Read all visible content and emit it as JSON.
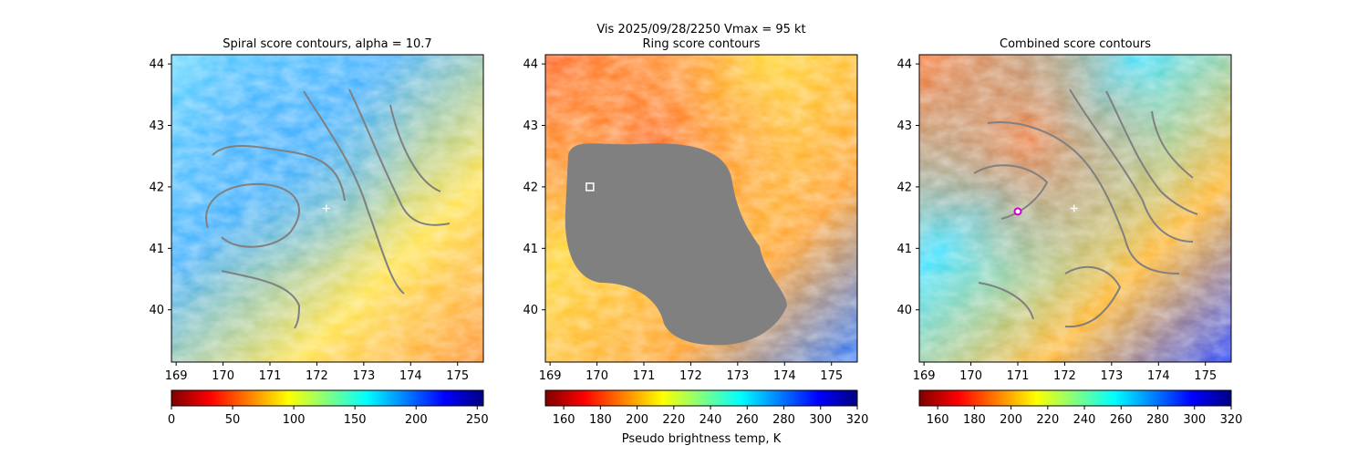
{
  "suptitle": "Vis  2025/09/28/2250    Vmax = 95 kt",
  "colormap": [
    "#800000",
    "#ff0000",
    "#ff8000",
    "#ffff00",
    "#80ff80",
    "#00ffff",
    "#0080ff",
    "#0000ff",
    "#000080"
  ],
  "contour_color": "#808080",
  "chart_data": [
    {
      "type": "heatmap",
      "title": "Spiral score contours, alpha = 10.7",
      "xlim": [
        168.9,
        175.55
      ],
      "ylim": [
        39.15,
        44.15
      ],
      "x_ticks": [
        "169",
        "170",
        "171",
        "172",
        "173",
        "174",
        "175"
      ],
      "y_ticks": [
        "40",
        "41",
        "42",
        "43",
        "44"
      ],
      "colorbar": {
        "range": [
          0,
          255
        ],
        "ticks": [
          "0",
          "50",
          "100",
          "150",
          "200",
          "250"
        ],
        "label": ""
      },
      "marker": {
        "shape": "plus",
        "color": "#ffffff",
        "lon": 172.2,
        "lat": 41.65
      }
    },
    {
      "type": "heatmap",
      "title": "Ring score contours",
      "xlim": [
        168.9,
        175.55
      ],
      "ylim": [
        39.15,
        44.15
      ],
      "x_ticks": [
        "169",
        "170",
        "171",
        "172",
        "173",
        "174",
        "175"
      ],
      "y_ticks": [
        "40",
        "41",
        "42",
        "43",
        "44"
      ],
      "colorbar": {
        "range": [
          150,
          320
        ],
        "ticks": [
          "160",
          "180",
          "200",
          "220",
          "240",
          "260",
          "280",
          "300",
          "320"
        ],
        "label": "Pseudo brightness temp, K"
      },
      "marker": {
        "shape": "square",
        "color": "#ffffff",
        "lon": 169.85,
        "lat": 42.0
      }
    },
    {
      "type": "heatmap",
      "title": "Combined score contours",
      "xlim": [
        168.9,
        175.55
      ],
      "ylim": [
        39.15,
        44.15
      ],
      "x_ticks": [
        "169",
        "170",
        "171",
        "172",
        "173",
        "174",
        "175"
      ],
      "y_ticks": [
        "40",
        "41",
        "42",
        "43",
        "44"
      ],
      "colorbar": {
        "range": [
          150,
          320
        ],
        "ticks": [
          "160",
          "180",
          "200",
          "220",
          "240",
          "260",
          "280",
          "300",
          "320"
        ],
        "label": ""
      },
      "marker": {
        "shape": "circle",
        "color": "#cc00cc",
        "lon": 171.0,
        "lat": 41.6
      },
      "marker2": {
        "shape": "plus",
        "color": "#ffffff",
        "lon": 172.2,
        "lat": 41.65
      }
    }
  ]
}
